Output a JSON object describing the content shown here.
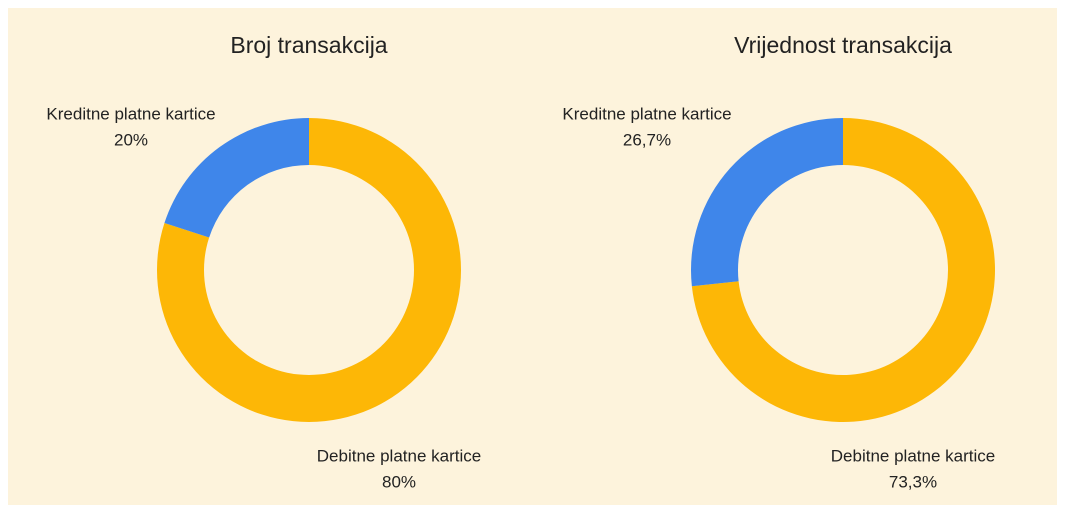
{
  "chart_data": [
    {
      "type": "donut",
      "title": "Broj transakcija",
      "categories": [
        "Debitne platne kartice",
        "Kreditne platne kartice"
      ],
      "values": [
        80,
        20
      ],
      "value_labels": [
        "80%",
        "20%"
      ],
      "colors": [
        "#fdb706",
        "#3f86ea"
      ]
    },
    {
      "type": "donut",
      "title": "Vrijednost transakcija",
      "categories": [
        "Debitne platne kartice",
        "Kreditne platne kartice"
      ],
      "values": [
        73.3,
        26.7
      ],
      "value_labels": [
        "73,3%",
        "26,7%"
      ],
      "colors": [
        "#fdb706",
        "#3f86ea"
      ]
    }
  ]
}
